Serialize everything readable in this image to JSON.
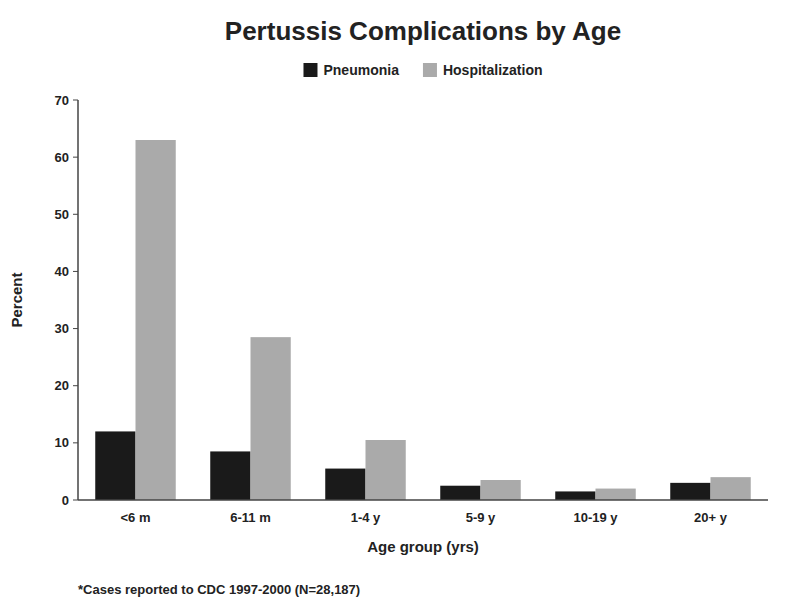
{
  "chart_data": {
    "type": "bar",
    "title": "Pertussis Complications by Age",
    "subtitle": "*Cases reported to CDC 1997-2000 (N=28,187)",
    "xlabel": "Age group (yrs)",
    "ylabel": "Percent",
    "categories": [
      "<6 m",
      "6-11 m",
      "1-4 y",
      "5-9 y",
      "10-19 y",
      "20+ y"
    ],
    "series": [
      {
        "name": "Pneumonia",
        "color": "#1a1a1a",
        "values": [
          12,
          8.5,
          5.5,
          2.5,
          1.5,
          3.0
        ]
      },
      {
        "name": "Hospitalization",
        "color": "#aaaaaa",
        "values": [
          63,
          28.5,
          10.5,
          3.5,
          2.0,
          4.0
        ]
      }
    ],
    "ylim": [
      0,
      70
    ],
    "yticks": [
      0,
      10,
      20,
      30,
      40,
      50,
      60,
      70
    ],
    "grid": false,
    "legend": "top"
  }
}
